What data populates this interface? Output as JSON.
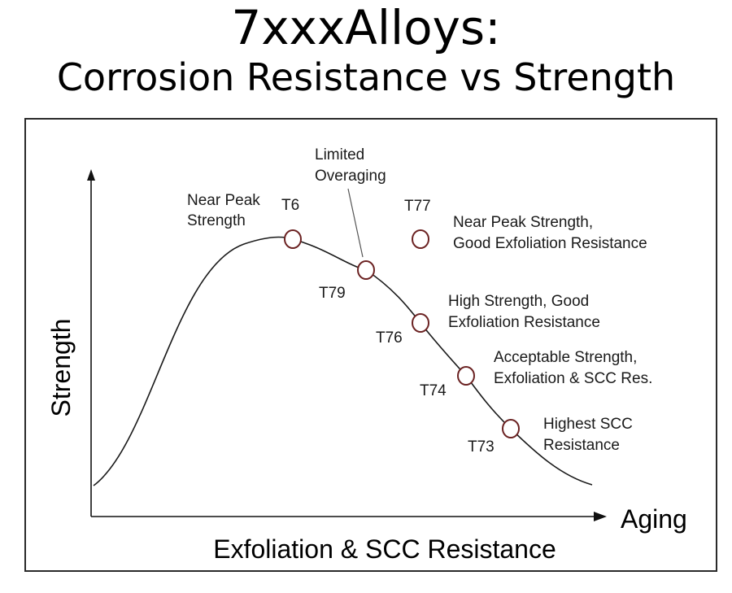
{
  "title": {
    "line1": "7xxxAlloys:",
    "line2": "Corrosion Resistance vs Strength"
  },
  "axes": {
    "y_label": "Strength",
    "x_label_arrow": "Aging",
    "x_label_bottom": "Exfoliation & SCC Resistance"
  },
  "tempers": [
    {
      "code": "T6",
      "desc_lines": [
        "Near Peak",
        "Strength"
      ]
    },
    {
      "code": "T79",
      "desc_lines": [
        "Limited",
        "Overaging"
      ]
    },
    {
      "code": "T77",
      "desc_lines": [
        "Near Peak Strength,",
        "Good Exfoliation Resistance"
      ]
    },
    {
      "code": "T76",
      "desc_lines": [
        "High Strength, Good",
        "Exfoliation Resistance"
      ]
    },
    {
      "code": "T74",
      "desc_lines": [
        "Acceptable Strength,",
        "Exfoliation & SCC Res."
      ]
    },
    {
      "code": "T73",
      "desc_lines": [
        "Highest SCC",
        "Resistance"
      ]
    }
  ],
  "colors": {
    "marker_stroke": "#6b2222",
    "curve": "#1a1a1a"
  }
}
